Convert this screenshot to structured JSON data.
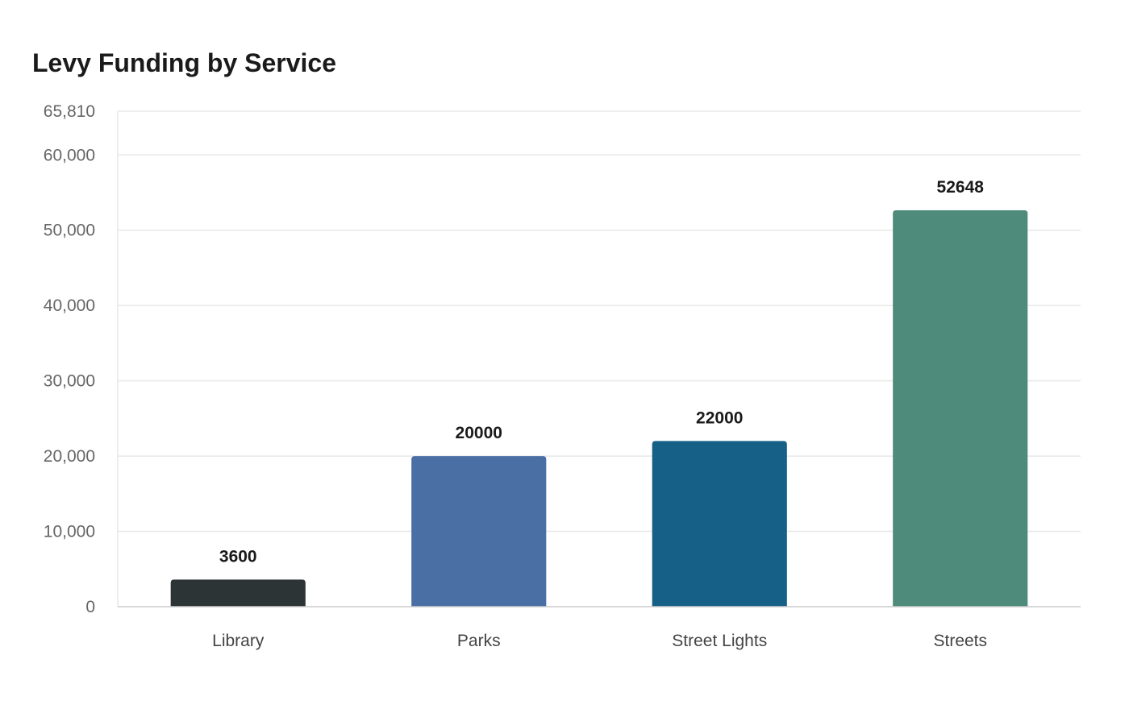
{
  "chart_data": {
    "type": "bar",
    "title": "Levy Funding by Service",
    "xlabel": "",
    "ylabel": "",
    "categories": [
      "Library",
      "Parks",
      "Street Lights",
      "Streets"
    ],
    "values": [
      3600,
      20000,
      22000,
      52648
    ],
    "data_labels": [
      "3600",
      "20000",
      "22000",
      "52648"
    ],
    "colors": [
      "#2d3436",
      "#4a6fa5",
      "#166088",
      "#4f8b7a"
    ],
    "ylim": [
      0,
      65810
    ],
    "y_ticks": [
      0,
      10000,
      20000,
      30000,
      40000,
      50000,
      60000,
      65810
    ],
    "y_tick_labels": [
      "0",
      "10,000",
      "20,000",
      "30,000",
      "40,000",
      "50,000",
      "60,000",
      "65,810"
    ],
    "grid": true,
    "legend": "none"
  }
}
